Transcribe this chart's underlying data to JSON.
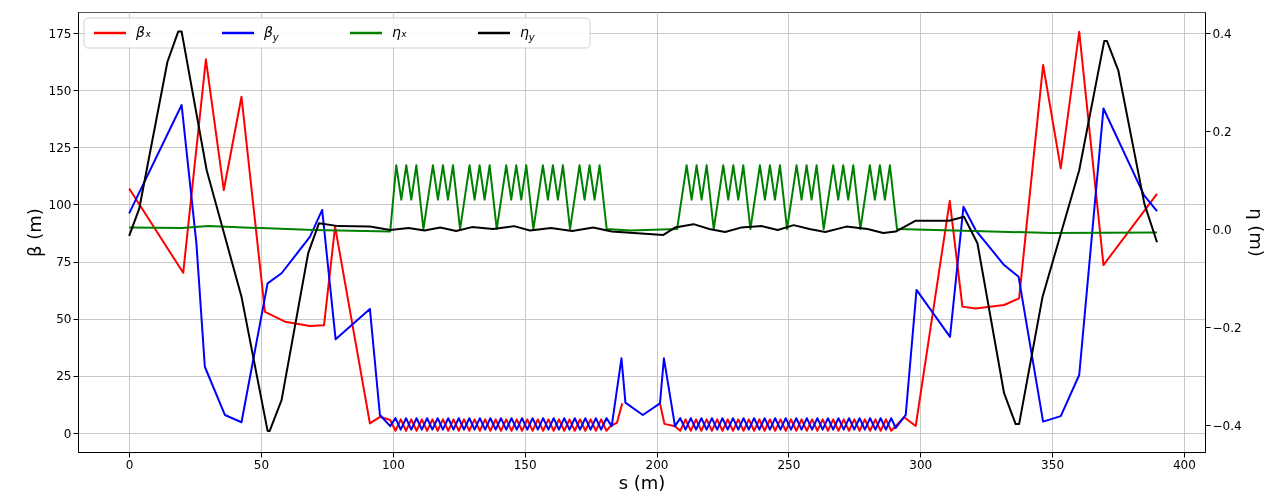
{
  "chart_data": {
    "type": "line",
    "xlabel": "s (m)",
    "ylabel": "β (m)",
    "y2label": "η (m)",
    "xlim": [
      -19.4,
      408
    ],
    "xticks": [
      0,
      50,
      100,
      150,
      200,
      250,
      300,
      350,
      400
    ],
    "ylim": [
      -8.3,
      184.2
    ],
    "yticks": [
      0,
      25,
      50,
      75,
      100,
      125,
      150,
      175
    ],
    "y2lim": [
      -0.455,
      0.443
    ],
    "y2ticks": [
      {
        "value": -0.4,
        "label": "−0.4"
      },
      {
        "value": -0.2,
        "label": "−0.2"
      },
      {
        "value": 0,
        "label": "0.0"
      },
      {
        "value": 0.2,
        "label": "0.2"
      },
      {
        "value": 0.4,
        "label": "0.4"
      }
    ],
    "grid": true,
    "legend": "top left",
    "line_style": "solid",
    "marker": "none",
    "series": [
      {
        "name": "βₓ",
        "color": "#ff0000",
        "x": [
          0,
          20.5,
          29.1,
          35.9,
          42.6,
          51.5,
          59.1,
          68.6,
          73.9,
          78.1,
          91.3,
          95.1,
          99,
          101,
          103,
          105,
          107,
          109,
          111,
          113,
          115,
          117,
          119,
          121,
          123,
          125,
          127,
          129,
          131,
          133,
          135,
          137,
          139,
          141,
          143,
          145,
          147,
          149,
          151,
          153,
          155,
          157,
          159,
          161,
          163,
          165,
          167,
          169,
          171,
          173,
          175,
          177,
          179,
          181,
          182.5,
          185,
          187,
          194.8,
          201.3,
          203,
          207,
          209,
          211,
          213,
          215,
          217,
          219,
          221,
          223,
          225,
          227,
          229,
          231,
          233,
          235,
          237,
          239,
          241,
          243,
          245,
          247,
          249,
          251,
          253,
          255,
          257,
          259,
          261,
          263,
          265,
          267,
          269,
          271,
          273,
          275,
          277,
          279,
          281,
          283,
          285,
          287,
          289,
          293.9,
          298.3,
          311.2,
          316,
          321,
          331.8,
          337.5,
          346.6,
          353.3,
          360.3,
          369.5,
          389.8
        ],
        "values": [
          107,
          70.1,
          163.5,
          106.3,
          147.1,
          53,
          48.7,
          46.8,
          47.2,
          90.3,
          4.2,
          7.1,
          5.7,
          1,
          6,
          1,
          6,
          1,
          6,
          1,
          6,
          1,
          6,
          1,
          6,
          1,
          6,
          1,
          6,
          1,
          6,
          1,
          6,
          1,
          6,
          1,
          6,
          1,
          6,
          1,
          6,
          1,
          6,
          1,
          6,
          1,
          6,
          1,
          6,
          1,
          6,
          1,
          6,
          1,
          3,
          4.5,
          13,
          null,
          13,
          4,
          3,
          1,
          6,
          1,
          6,
          1,
          6,
          1,
          6,
          1,
          6,
          1,
          6,
          1,
          6,
          1,
          6,
          1,
          6,
          1,
          6,
          1,
          6,
          1,
          6,
          1,
          6,
          1,
          6,
          1,
          6,
          1,
          6,
          1,
          6,
          1,
          6,
          1,
          6,
          1,
          6,
          1,
          6.9,
          3.1,
          101.6,
          55.3,
          54.5,
          56,
          58.9,
          161,
          115.8,
          175.6,
          73.5,
          104.6
        ]
      },
      {
        "name": "β$_{y}$",
        "color": "#0000ff",
        "x": [
          0,
          19.9,
          25.5,
          28.7,
          36.3,
          42.6,
          52.5,
          57.8,
          68.6,
          73.2,
          78.3,
          91.3,
          95.1,
          99,
          101,
          103,
          105,
          107,
          109,
          111,
          113,
          115,
          117,
          119,
          121,
          123,
          125,
          127,
          129,
          131,
          133,
          135,
          137,
          139,
          141,
          143,
          145,
          147,
          149,
          151,
          153,
          155,
          157,
          159,
          161,
          163,
          165,
          167,
          169,
          171,
          173,
          175,
          177,
          179,
          181,
          183,
          186.7,
          188.2,
          194.8,
          201.3,
          202.8,
          207,
          209,
          211,
          213,
          215,
          217,
          219,
          221,
          223,
          225,
          227,
          229,
          231,
          233,
          235,
          237,
          239,
          241,
          243,
          245,
          247,
          249,
          251,
          253,
          255,
          257,
          259,
          261,
          263,
          265,
          267,
          269,
          271,
          273,
          275,
          277,
          279,
          281,
          283,
          285,
          287,
          289,
          290.7,
          294.5,
          298.6,
          311.3,
          316.4,
          321,
          331.8,
          337.3,
          346.6,
          353.3,
          360.3,
          369.5,
          384.9,
          389.8
        ],
        "values": [
          96.1,
          143.5,
          83,
          29,
          7.9,
          4.7,
          65.5,
          69.9,
          85.9,
          97.6,
          41,
          54.3,
          7.9,
          3,
          6.5,
          1.5,
          6.5,
          1.5,
          6.5,
          1.5,
          6.5,
          1.5,
          6.5,
          1.5,
          6.5,
          1.5,
          6.5,
          1.5,
          6.5,
          1.5,
          6.5,
          1.5,
          6.5,
          1.5,
          6.5,
          1.5,
          6.5,
          1.5,
          6.5,
          1.5,
          6.5,
          1.5,
          6.5,
          1.5,
          6.5,
          1.5,
          6.5,
          1.5,
          6.5,
          1.5,
          6.5,
          1.5,
          6.5,
          1.5,
          6.5,
          3,
          32.7,
          13.3,
          7.9,
          13,
          32.7,
          3,
          6.5,
          1.5,
          6.5,
          1.5,
          6.5,
          1.5,
          6.5,
          1.5,
          6.5,
          1.5,
          6.5,
          1.5,
          6.5,
          1.5,
          6.5,
          1.5,
          6.5,
          1.5,
          6.5,
          1.5,
          6.5,
          1.5,
          6.5,
          1.5,
          6.5,
          1.5,
          6.5,
          1.5,
          6.5,
          1.5,
          6.5,
          1.5,
          6.5,
          1.5,
          6.5,
          1.5,
          6.5,
          1.5,
          6.5,
          1.5,
          6.5,
          2.2,
          7.9,
          62.6,
          42.1,
          99,
          88.8,
          73.5,
          68.4,
          5,
          7.4,
          25.4,
          142,
          104,
          97.1
        ]
      },
      {
        "name": "ηₓ",
        "color": "#008000",
        "axis": "y2",
        "x": [
          0,
          20,
          30,
          50,
          70,
          99,
          101.3,
          103.2,
          105.1,
          107,
          108.9,
          111.6,
          115.2,
          117.1,
          119,
          120.9,
          122.8,
          125.5,
          129.1,
          131,
          132.9,
          134.8,
          136.7,
          139.4,
          143,
          144.9,
          146.8,
          148.7,
          150.6,
          153.3,
          156.9,
          158.8,
          160.7,
          162.6,
          164.5,
          167.2,
          170.8,
          172.7,
          174.6,
          176.5,
          178.4,
          181.1,
          190,
          207.8,
          211.4,
          213.3,
          215.2,
          217.1,
          219,
          221.7,
          225.3,
          227.2,
          229.1,
          231,
          232.9,
          235.6,
          239.2,
          241.1,
          243,
          244.9,
          246.8,
          249.5,
          253.1,
          255,
          256.9,
          258.8,
          260.7,
          263.4,
          267,
          268.9,
          270.8,
          272.7,
          274.6,
          277.3,
          280.9,
          282.8,
          284.7,
          286.6,
          288.5,
          291.2,
          320,
          350,
          389.8
        ],
        "values": [
          0.003,
          0.002,
          0.006,
          0.002,
          -0.002,
          -0.005,
          0.13,
          0.06,
          0.13,
          0.06,
          0.13,
          0,
          0.13,
          0.06,
          0.13,
          0.06,
          0.13,
          0,
          0.13,
          0.06,
          0.13,
          0.06,
          0.13,
          0,
          0.13,
          0.06,
          0.13,
          0.06,
          0.13,
          0,
          0.13,
          0.06,
          0.13,
          0.06,
          0.13,
          0,
          0.13,
          0.06,
          0.13,
          0.06,
          0.13,
          0,
          -0.003,
          0,
          0.13,
          0.06,
          0.13,
          0.06,
          0.13,
          0,
          0.13,
          0.06,
          0.13,
          0.06,
          0.13,
          0,
          0.13,
          0.06,
          0.13,
          0.06,
          0.13,
          0,
          0.13,
          0.06,
          0.13,
          0.06,
          0.13,
          0,
          0.13,
          0.06,
          0.13,
          0.06,
          0.13,
          0,
          0.13,
          0.06,
          0.13,
          0.06,
          0.13,
          0,
          -0.004,
          -0.008,
          -0.007
        ]
      },
      {
        "name": "η$_{y}$",
        "color": "#000000",
        "axis": "y2",
        "x": [
          0,
          3.8,
          14.5,
          18.6,
          19.9,
          29.4,
          42.6,
          52.5,
          53.3,
          57.8,
          67.9,
          72,
          79.3,
          91.3,
          99,
          106,
          112,
          118,
          124,
          130,
          138,
          146,
          152,
          160,
          168,
          176,
          183,
          202.6,
          207,
          214,
          220,
          226,
          232,
          240,
          246,
          252,
          258,
          264,
          272,
          280,
          286,
          290.7,
          298.3,
          310.9,
          316.6,
          321.7,
          331.8,
          336.2,
          337.5,
          346.4,
          360.3,
          369.8,
          370.8,
          375.1,
          385,
          389.8
        ],
        "values": [
          -0.014,
          0.041,
          0.341,
          0.403,
          0.403,
          0.12,
          -0.138,
          -0.412,
          -0.412,
          -0.349,
          -0.049,
          0.012,
          0.006,
          0.005,
          -0.002,
          0.002,
          -0.003,
          0.003,
          -0.004,
          0.004,
          0,
          0.006,
          -0.003,
          0.002,
          -0.004,
          0.003,
          -0.005,
          -0.012,
          0.003,
          0.01,
          0,
          -0.006,
          0.003,
          0.006,
          -0.002,
          0.008,
          0,
          -0.006,
          0.005,
          0,
          -0.008,
          -0.005,
          0.017,
          0.017,
          0.025,
          -0.029,
          -0.335,
          -0.398,
          -0.398,
          -0.138,
          0.12,
          0.384,
          0.384,
          0.324,
          0.052,
          -0.027
        ]
      }
    ]
  }
}
